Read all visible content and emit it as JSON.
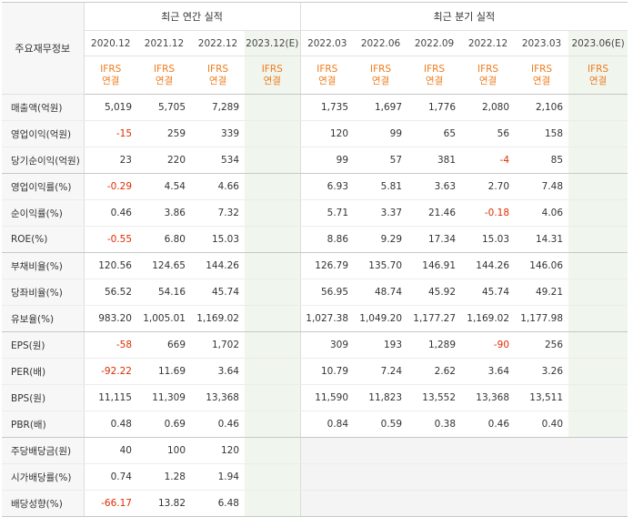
{
  "header": {
    "row_label": "주요재무정보",
    "annual_group": "최근 연간 실적",
    "quarter_group": "최근 분기 실적",
    "annual_periods": [
      "2020.12",
      "2021.12",
      "2022.12",
      "2023.12(E)"
    ],
    "quarter_periods": [
      "2022.03",
      "2022.06",
      "2022.09",
      "2022.12",
      "2023.03",
      "2023.06(E)"
    ],
    "basis_line1": "IFRS",
    "basis_line2": "연결"
  },
  "rows": [
    {
      "label": "매출액(억원)",
      "values": [
        "5,019",
        "5,705",
        "7,289",
        "",
        "1,735",
        "1,697",
        "1,776",
        "2,080",
        "2,106",
        ""
      ]
    },
    {
      "label": "영업이익(억원)",
      "values": [
        "-15",
        "259",
        "339",
        "",
        "120",
        "99",
        "65",
        "56",
        "158",
        ""
      ]
    },
    {
      "label": "당기순이익(억원)",
      "values": [
        "23",
        "220",
        "534",
        "",
        "99",
        "57",
        "381",
        "-4",
        "85",
        ""
      ]
    },
    {
      "label": "영업이익률(%)",
      "values": [
        "-0.29",
        "4.54",
        "4.66",
        "",
        "6.93",
        "5.81",
        "3.63",
        "2.70",
        "7.48",
        ""
      ]
    },
    {
      "label": "순이익률(%)",
      "values": [
        "0.46",
        "3.86",
        "7.32",
        "",
        "5.71",
        "3.37",
        "21.46",
        "-0.18",
        "4.06",
        ""
      ]
    },
    {
      "label": "ROE(%)",
      "values": [
        "-0.55",
        "6.80",
        "15.03",
        "",
        "8.86",
        "9.29",
        "17.34",
        "15.03",
        "14.31",
        ""
      ]
    },
    {
      "label": "부채비율(%)",
      "values": [
        "120.56",
        "124.65",
        "144.26",
        "",
        "126.79",
        "135.70",
        "146.91",
        "144.26",
        "146.06",
        ""
      ]
    },
    {
      "label": "당좌비율(%)",
      "values": [
        "56.52",
        "54.16",
        "45.74",
        "",
        "56.95",
        "48.74",
        "45.92",
        "45.74",
        "49.21",
        ""
      ]
    },
    {
      "label": "유보율(%)",
      "values": [
        "983.20",
        "1,005.01",
        "1,169.02",
        "",
        "1,027.38",
        "1,049.20",
        "1,177.27",
        "1,169.02",
        "1,177.98",
        ""
      ]
    },
    {
      "label": "EPS(원)",
      "values": [
        "-58",
        "669",
        "1,702",
        "",
        "309",
        "193",
        "1,289",
        "-90",
        "256",
        ""
      ]
    },
    {
      "label": "PER(배)",
      "values": [
        "-92.22",
        "11.69",
        "3.64",
        "",
        "10.79",
        "7.24",
        "2.62",
        "3.64",
        "3.26",
        ""
      ]
    },
    {
      "label": "BPS(원)",
      "values": [
        "11,115",
        "11,309",
        "13,368",
        "",
        "11,590",
        "11,823",
        "13,552",
        "13,368",
        "13,511",
        ""
      ]
    },
    {
      "label": "PBR(배)",
      "values": [
        "0.48",
        "0.69",
        "0.46",
        "",
        "0.84",
        "0.59",
        "0.38",
        "0.46",
        "0.40",
        ""
      ]
    },
    {
      "label": "주당배당금(원)",
      "values": [
        "40",
        "100",
        "120",
        "",
        "",
        "",
        "",
        "",
        "",
        ""
      ]
    },
    {
      "label": "시가배당률(%)",
      "values": [
        "0.74",
        "1.28",
        "1.94",
        "",
        "",
        "",
        "",
        "",
        "",
        ""
      ]
    },
    {
      "label": "배당성향(%)",
      "values": [
        "-66.17",
        "13.82",
        "6.48",
        "",
        "",
        "",
        "",
        "",
        "",
        ""
      ]
    }
  ],
  "colors": {
    "negative": "#dd2c00",
    "basis": "#ee7b1c",
    "estimate_bg": "#f0f5ee",
    "quarter_empty_bg": "#f4f4f4",
    "label_bg": "#f7f7f7"
  }
}
